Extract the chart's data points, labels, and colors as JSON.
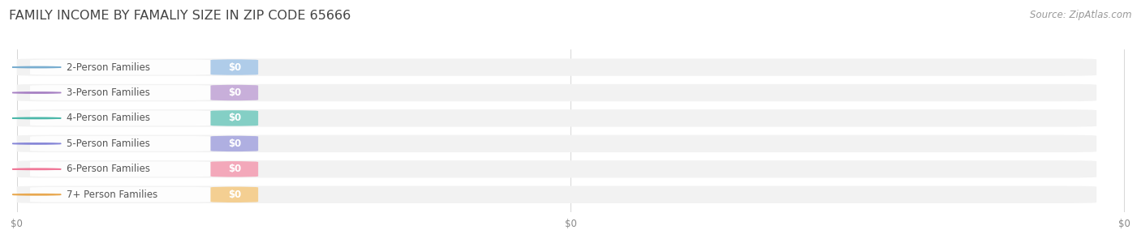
{
  "title": "FAMILY INCOME BY FAMALIY SIZE IN ZIP CODE 65666",
  "source_text": "Source: ZipAtlas.com",
  "categories": [
    "2-Person Families",
    "3-Person Families",
    "4-Person Families",
    "5-Person Families",
    "6-Person Families",
    "7+ Person Families"
  ],
  "values": [
    0,
    0,
    0,
    0,
    0,
    0
  ],
  "bar_colors": [
    "#a8c8e8",
    "#c4a8d8",
    "#78ccc0",
    "#a8a8e0",
    "#f4a0b4",
    "#f5cc88"
  ],
  "dot_colors": [
    "#7aaed0",
    "#a882c4",
    "#4db8aa",
    "#8888d8",
    "#f07898",
    "#e8a850"
  ],
  "value_pill_colors": [
    "#90b8d8",
    "#b490c8",
    "#50b8ac",
    "#9090cc",
    "#f08898",
    "#f0b868"
  ],
  "background_color": "#ffffff",
  "bar_bg_color": "#f2f2f2",
  "bar_bg_color_alt": "#ebebeb",
  "title_fontsize": 11.5,
  "source_fontsize": 8.5,
  "label_fontsize": 8.5,
  "tick_fontsize": 8.5,
  "value_label": "$0",
  "x_tick_labels": [
    "$0",
    "$0",
    "$0"
  ]
}
